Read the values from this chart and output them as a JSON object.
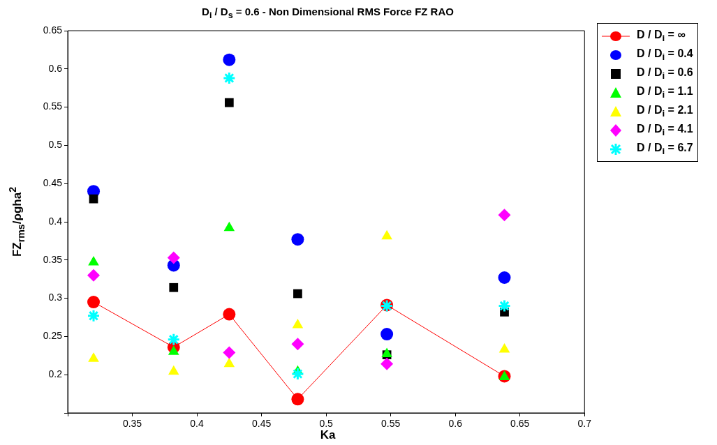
{
  "chart_data": {
    "type": "scatter",
    "title": "D$_{i}$ / D$_{s}$ = 0.6 - Non Dimensional RMS Force FZ RAO",
    "xlabel": "Ka",
    "ylabel": "FZ$_{rms}$/ρgha$^{2}$",
    "x": [
      0.32,
      0.382,
      0.425,
      0.478,
      0.547,
      0.638
    ],
    "xlim": [
      0.3,
      0.7
    ],
    "xticks": [
      {
        "value": 0.3,
        "label": null
      },
      0.35,
      0.4,
      0.45,
      0.5,
      0.55,
      0.6,
      0.65,
      0.7
    ],
    "ylim": [
      0.15,
      0.65
    ],
    "yticks": [
      {
        "value": 0.15,
        "label": null
      },
      0.2,
      0.25,
      0.3,
      0.35,
      0.4,
      0.45,
      0.5,
      0.55,
      0.6,
      0.65
    ],
    "grid": false,
    "legend": "right",
    "series": [
      {
        "name": "D / D$_{i}$ = ∞",
        "type": "line",
        "marker": "circle",
        "color": "#ff0000",
        "values": [
          0.295,
          0.236,
          0.279,
          0.168,
          0.291,
          0.198
        ]
      },
      {
        "name": "D / D$_{i}$ = 0.4",
        "marker": "circle",
        "color": "#0000ff",
        "values": [
          0.44,
          0.343,
          0.612,
          0.377,
          0.253,
          0.327
        ]
      },
      {
        "name": "D / D$_{i}$ = 0.6",
        "marker": "square",
        "color": "#000000",
        "values": [
          0.43,
          0.314,
          0.556,
          0.306,
          0.226,
          0.282
        ]
      },
      {
        "name": "D / D$_{i}$ = 1.1",
        "marker": "triangle",
        "color": "#00ff00",
        "values": [
          0.347,
          0.23,
          0.392,
          0.204,
          0.227,
          0.197
        ]
      },
      {
        "name": "D / D$_{i}$ = 2.1",
        "marker": "triangle",
        "color": "#ffff00",
        "values": [
          0.221,
          0.204,
          0.214,
          0.265,
          0.381,
          0.233
        ]
      },
      {
        "name": "D / D$_{i}$ = 4.1",
        "marker": "diamond",
        "color": "#ff00ff",
        "values": [
          0.33,
          0.353,
          0.229,
          0.24,
          0.214,
          0.409
        ]
      },
      {
        "name": "D / D$_{i}$ = 6.7",
        "marker": "cross",
        "color": "#00ffff",
        "values": [
          0.277,
          0.246,
          0.588,
          0.201,
          0.29,
          0.29
        ]
      }
    ]
  }
}
